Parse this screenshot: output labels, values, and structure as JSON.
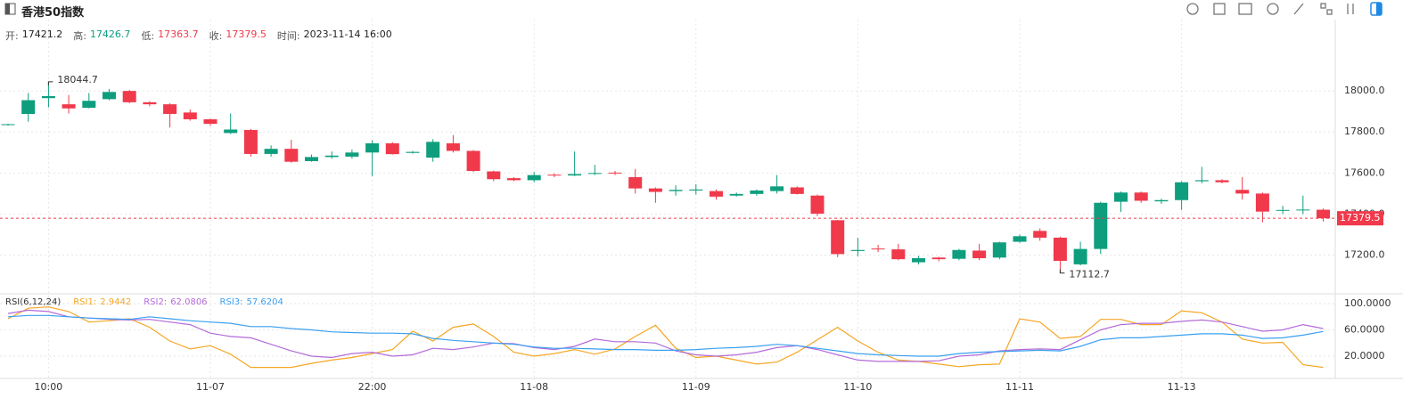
{
  "header": {
    "title": "香港50指数",
    "info": [
      {
        "label": "开:",
        "value": 17421.2,
        "color": "#222222"
      },
      {
        "label": "高:",
        "value": 17426.7,
        "color": "#0e9e7e"
      },
      {
        "label": "低:",
        "value": 17363.7,
        "color": "#f0394b"
      },
      {
        "label": "收:",
        "value": 17379.5,
        "color": "#f0394b"
      },
      {
        "label": "时间:",
        "value": "2023-11-14 16:00",
        "color": "#222222"
      }
    ]
  },
  "chart_data": [
    {
      "type": "candlestick",
      "categories": [
        null,
        null,
        "10:00",
        null,
        null,
        null,
        null,
        null,
        null,
        null,
        "11-07",
        null,
        null,
        null,
        null,
        null,
        null,
        null,
        "22:00",
        null,
        null,
        null,
        null,
        null,
        null,
        null,
        "11-08",
        null,
        null,
        null,
        null,
        null,
        null,
        null,
        "11-09",
        null,
        null,
        null,
        null,
        null,
        null,
        null,
        "11-10",
        null,
        null,
        null,
        null,
        null,
        null,
        null,
        "11-11",
        null,
        null,
        null,
        null,
        null,
        null,
        null,
        "11-13",
        null,
        null,
        null,
        null,
        null,
        null,
        null
      ],
      "open": [
        17835,
        17888,
        17965,
        17935,
        17918,
        17960,
        18000,
        17945,
        17935,
        17895,
        17862,
        17795,
        17810,
        17693,
        17718,
        17658,
        17678,
        17680,
        17700,
        17745,
        17698,
        17675,
        17745,
        17708,
        17608,
        17575,
        17565,
        17592,
        17588,
        17598,
        17602,
        17580,
        17525,
        17512,
        17515,
        17512,
        17490,
        17498,
        17512,
        17530,
        17490,
        17370,
        17220,
        17232,
        17228,
        17165,
        17188,
        17182,
        17222,
        17188,
        17265,
        17318,
        17285,
        17155,
        17230,
        17460,
        17505,
        17462,
        17468,
        17560,
        17565,
        17518,
        17500,
        17418,
        17418,
        17421.2
      ],
      "high": [
        17840,
        17990,
        18044.7,
        17980,
        17990,
        18010,
        18005,
        17950,
        17940,
        17910,
        17865,
        17890,
        17815,
        17735,
        17762,
        17690,
        17705,
        17715,
        17760,
        17750,
        17708,
        17765,
        17785,
        17712,
        17612,
        17580,
        17605,
        17598,
        17705,
        17640,
        17610,
        17620,
        17530,
        17540,
        17545,
        17520,
        17505,
        17520,
        17590,
        17535,
        17495,
        17372,
        17285,
        17250,
        17255,
        17195,
        17192,
        17230,
        17255,
        17265,
        17300,
        17330,
        17290,
        17265,
        17460,
        17510,
        17510,
        17475,
        17560,
        17630,
        17570,
        17580,
        17505,
        17440,
        17490,
        17426.7
      ],
      "low": [
        17832,
        17850,
        17920,
        17890,
        17915,
        17955,
        17940,
        17925,
        17822,
        17855,
        17830,
        17790,
        17680,
        17680,
        17650,
        17655,
        17670,
        17670,
        17585,
        17690,
        17695,
        17655,
        17700,
        17605,
        17560,
        17560,
        17555,
        17580,
        17585,
        17590,
        17590,
        17500,
        17455,
        17490,
        17495,
        17470,
        17485,
        17490,
        17500,
        17495,
        17390,
        17190,
        17195,
        17215,
        17175,
        17155,
        17170,
        17175,
        17175,
        17180,
        17260,
        17270,
        17112.7,
        17150,
        17205,
        17410,
        17455,
        17450,
        17420,
        17550,
        17550,
        17470,
        17360,
        17400,
        17400,
        17363.7
      ],
      "close": [
        17838,
        17955,
        17975,
        17915,
        17952,
        17995,
        17945,
        17935,
        17888,
        17862,
        17840,
        17812,
        17693,
        17718,
        17655,
        17678,
        17685,
        17700,
        17745,
        17692,
        17703,
        17752,
        17708,
        17610,
        17570,
        17565,
        17590,
        17588,
        17595,
        17600,
        17598,
        17525,
        17508,
        17518,
        17520,
        17485,
        17498,
        17515,
        17535,
        17498,
        17402,
        17205,
        17225,
        17228,
        17180,
        17185,
        17180,
        17225,
        17185,
        17262,
        17292,
        17285,
        17172,
        17230,
        17455,
        17505,
        17465,
        17468,
        17555,
        17565,
        17555,
        17500,
        17412,
        17420,
        17422,
        17379.5
      ],
      "up_color": "#0e9e7e",
      "down_color": "#f0394b",
      "ylim": [
        17020,
        18235
      ],
      "yticks": [
        {
          "value": 17200,
          "label": "17200.0"
        },
        {
          "value": 17400,
          "label": "17400.0"
        },
        {
          "value": 17600,
          "label": "17600.0"
        },
        {
          "value": 17800,
          "label": "17800.0"
        },
        {
          "value": 18000,
          "label": "18000.0"
        }
      ],
      "grid": true,
      "last_price_line": true
    },
    {
      "type": "line",
      "title": "RSI(6,12,24)",
      "series": [
        {
          "name": "RSI1:",
          "color": "#f5a623",
          "values": [
            77,
            93,
            95,
            88,
            72,
            74,
            77,
            64,
            43,
            31,
            36,
            23,
            3,
            3,
            3,
            9,
            14,
            18,
            24,
            30,
            58,
            43,
            64,
            69,
            50,
            26,
            20,
            24,
            30,
            23,
            31,
            50,
            67,
            32,
            18,
            20,
            14,
            8,
            11,
            26,
            45,
            64,
            43,
            26,
            14,
            12,
            8,
            4,
            7,
            8,
            77,
            72,
            47,
            50,
            76,
            76,
            68,
            68,
            89,
            86,
            72,
            46,
            40,
            41,
            7,
            2.9442
          ]
        },
        {
          "name": "RSI2:",
          "color": "#b36bd9",
          "values": [
            85,
            90,
            88,
            80,
            78,
            76,
            75,
            76,
            72,
            68,
            55,
            50,
            48,
            38,
            28,
            20,
            18,
            24,
            26,
            20,
            22,
            32,
            30,
            34,
            40,
            39,
            33,
            30,
            35,
            46,
            42,
            42,
            40,
            28,
            22,
            20,
            22,
            26,
            33,
            36,
            30,
            22,
            14,
            12,
            12,
            12,
            13,
            20,
            22,
            28,
            30,
            31,
            30,
            45,
            60,
            68,
            70,
            70,
            73,
            75,
            72,
            65,
            58,
            60,
            68,
            62.0806
          ]
        },
        {
          "name": "RSI3:",
          "color": "#3ba0f0",
          "values": [
            80,
            82,
            82,
            80,
            78,
            77,
            76,
            80,
            77,
            74,
            72,
            70,
            65,
            65,
            62,
            60,
            57,
            56,
            55,
            55,
            54,
            47,
            44,
            42,
            40,
            38,
            34,
            32,
            32,
            31,
            30,
            30,
            29,
            29,
            30,
            32,
            33,
            35,
            38,
            36,
            32,
            28,
            24,
            22,
            21,
            20,
            20,
            24,
            26,
            27,
            28,
            29,
            28,
            35,
            45,
            48,
            48,
            50,
            52,
            54,
            54,
            52,
            47,
            48,
            52,
            57.6204
          ]
        }
      ],
      "ylim": [
        -9.8,
        112.2
      ],
      "yticks": [
        {
          "value": 20,
          "label": "20.0000"
        },
        {
          "value": 60,
          "label": "60.0000"
        },
        {
          "value": 100,
          "label": "100.0000"
        }
      ],
      "grid": true
    }
  ]
}
